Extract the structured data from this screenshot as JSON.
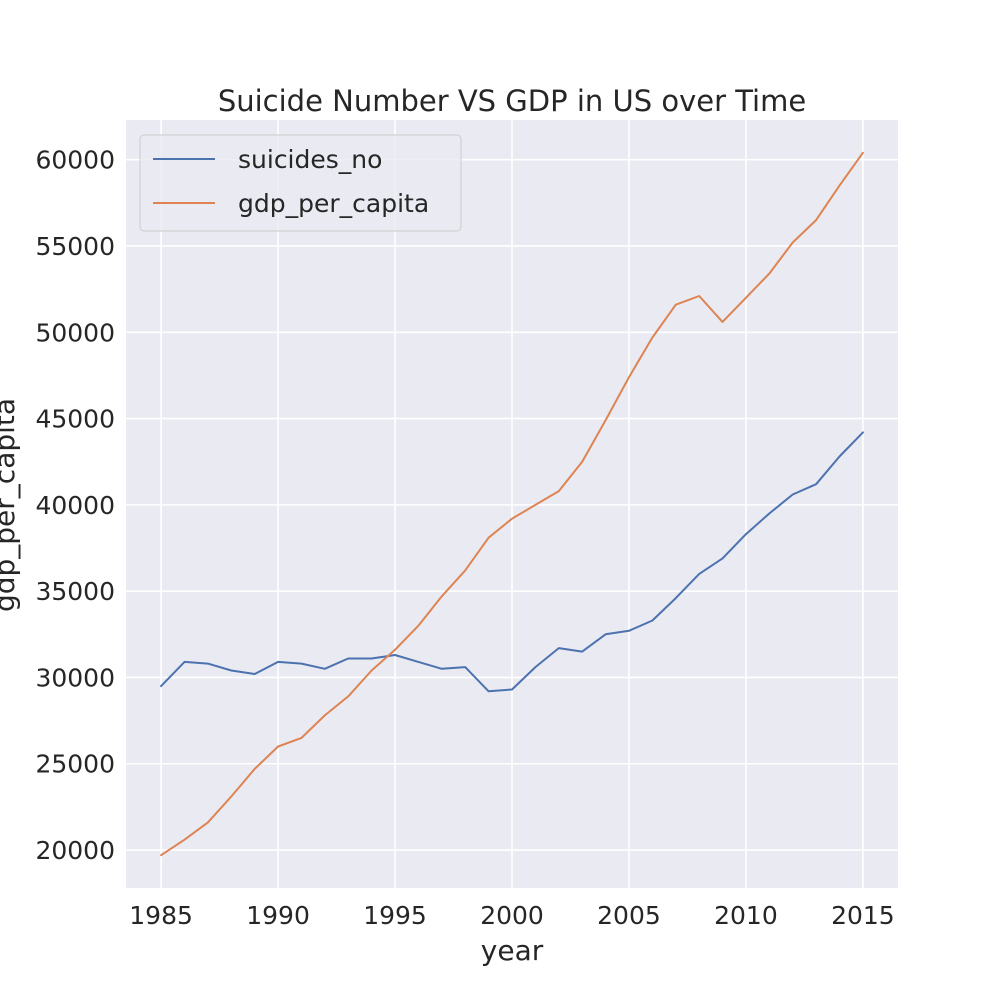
{
  "chart_data": {
    "type": "line",
    "title": "Suicide Number VS GDP in US over Time",
    "xlabel": "year",
    "ylabel": "gdp_per_capita",
    "xlim": [
      1983.5,
      2016.5
    ],
    "ylim": [
      17800,
      62300
    ],
    "x_ticks": [
      1985,
      1990,
      1995,
      2000,
      2005,
      2010,
      2015
    ],
    "y_ticks": [
      20000,
      25000,
      30000,
      35000,
      40000,
      45000,
      50000,
      55000,
      60000
    ],
    "grid": true,
    "legend_position": "top-left",
    "x": [
      1985,
      1986,
      1987,
      1988,
      1989,
      1990,
      1991,
      1992,
      1993,
      1994,
      1995,
      1996,
      1997,
      1998,
      1999,
      2000,
      2001,
      2002,
      2003,
      2004,
      2005,
      2006,
      2007,
      2008,
      2009,
      2010,
      2011,
      2012,
      2013,
      2014,
      2015
    ],
    "series": [
      {
        "name": "suicides_no",
        "color": "#4c72b0",
        "values": [
          29500,
          30900,
          30800,
          30400,
          30200,
          30900,
          30800,
          30500,
          31100,
          31100,
          31300,
          30900,
          30500,
          30600,
          29200,
          29300,
          30600,
          31700,
          31500,
          32500,
          32700,
          33300,
          34600,
          36000,
          36900,
          38300,
          39500,
          40600,
          41200,
          42800,
          44200
        ]
      },
      {
        "name": "gdp_per_capita",
        "color": "#dd8452",
        "values": [
          19700,
          20600,
          21600,
          23100,
          24700,
          26000,
          26500,
          27800,
          28900,
          30400,
          31600,
          33000,
          34700,
          36200,
          38100,
          39200,
          40000,
          40800,
          42500,
          44900,
          47400,
          49700,
          51600,
          52100,
          50600,
          52000,
          53400,
          55200,
          56500,
          58500,
          60400
        ]
      }
    ]
  }
}
